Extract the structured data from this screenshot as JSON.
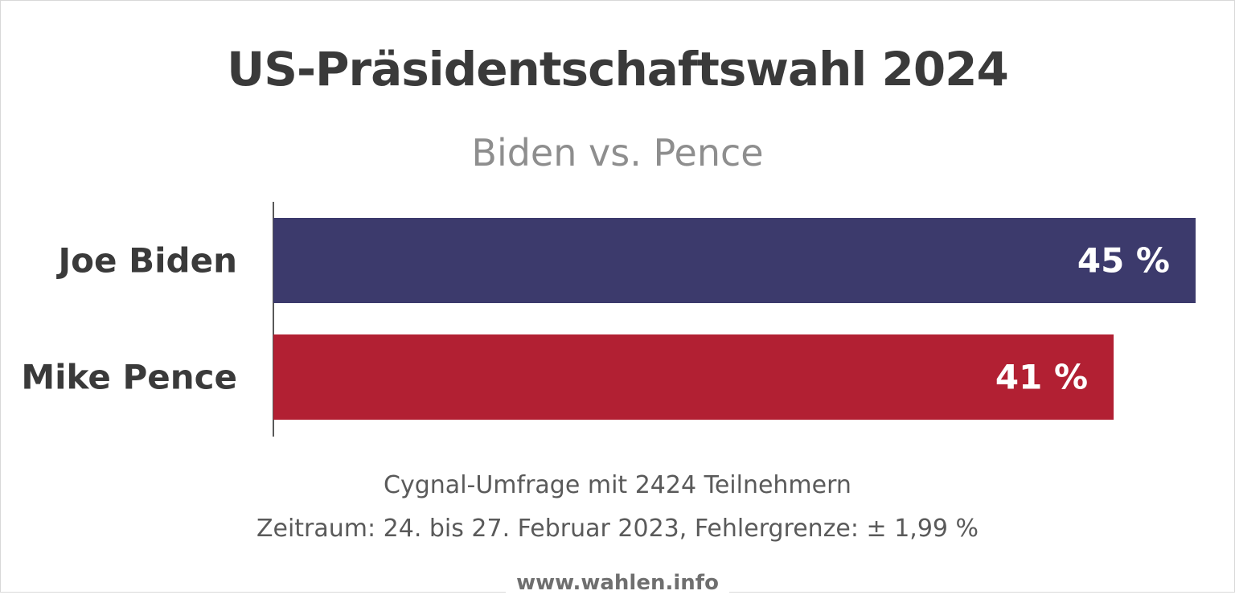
{
  "chart_data": {
    "type": "bar",
    "orientation": "horizontal",
    "title": "US-Präsidentschaftswahl 2024",
    "subtitle": "Biden vs. Pence",
    "categories": [
      "Joe Biden",
      "Mike Pence"
    ],
    "values": [
      45,
      41
    ],
    "value_labels": [
      "45 %",
      "41 %"
    ],
    "colors": [
      "#3c3a6c",
      "#b22033"
    ],
    "xlim": [
      0,
      45
    ],
    "grid": false
  },
  "footer": {
    "line1": "Cygnal-Umfrage mit 2424 Teilnehmern",
    "line2": "Zeitraum: 24. bis 27. Februar 2023, Fehlergrenze: ± 1,99 %",
    "source": "www.wahlen.info"
  }
}
